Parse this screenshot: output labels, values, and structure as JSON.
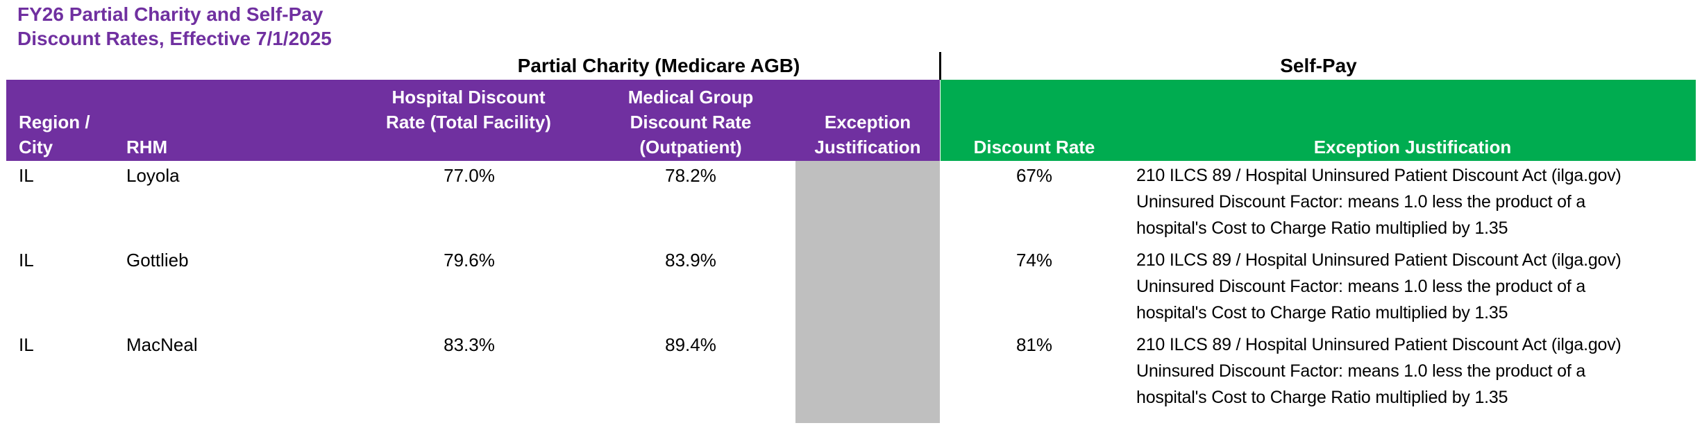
{
  "title": {
    "line1": "FY26 Partial Charity and Self-Pay",
    "line2": "Discount Rates, Effective 7/1/2025"
  },
  "groups": {
    "partial_charity": "Partial Charity (Medicare AGB)",
    "self_pay": "Self-Pay"
  },
  "columns": {
    "region_city": {
      "line1": "Region /",
      "line2": "City"
    },
    "rhm": "RHM",
    "hospital_discount": {
      "line1": "Hospital Discount",
      "line2": "Rate (Total Facility)"
    },
    "medical_group": {
      "line1": "Medical Group",
      "line2": "Discount Rate",
      "line3": "(Outpatient)"
    },
    "partial_exception": {
      "line1": "Exception",
      "line2": "Justification"
    },
    "selfpay_discount_rate": "Discount Rate",
    "selfpay_exception_justification": "Exception Justification"
  },
  "colors": {
    "purple": "#7030A0",
    "green": "#00AC50",
    "gray": "#BFBFBF"
  },
  "rows": [
    {
      "region": "IL",
      "rhm": "Loyola",
      "hospital_discount_rate": "77.0%",
      "medical_group_discount_rate": "78.2%",
      "partial_charity_exception": "",
      "selfpay_discount_rate": "67%",
      "justification_lines": [
        "210 ILCS 89 / Hospital Uninsured Patient Discount Act (ilga.gov)",
        "Uninsured Discount Factor: means 1.0 less the product of a",
        "hospital's Cost to Charge Ratio multiplied by 1.35"
      ]
    },
    {
      "region": "IL",
      "rhm": "Gottlieb",
      "hospital_discount_rate": "79.6%",
      "medical_group_discount_rate": "83.9%",
      "partial_charity_exception": "",
      "selfpay_discount_rate": "74%",
      "justification_lines": [
        "210 ILCS 89 / Hospital Uninsured Patient Discount Act (ilga.gov)",
        "Uninsured Discount Factor: means 1.0 less the product of a",
        "hospital's Cost to Charge Ratio multiplied by 1.35"
      ]
    },
    {
      "region": "IL",
      "rhm": "MacNeal",
      "hospital_discount_rate": "83.3%",
      "medical_group_discount_rate": "89.4%",
      "partial_charity_exception": "",
      "selfpay_discount_rate": "81%",
      "justification_lines": [
        "210 ILCS 89 / Hospital Uninsured Patient Discount Act (ilga.gov)",
        "Uninsured Discount Factor: means 1.0 less the product of a",
        "hospital's Cost to Charge Ratio multiplied by 1.35"
      ]
    }
  ]
}
